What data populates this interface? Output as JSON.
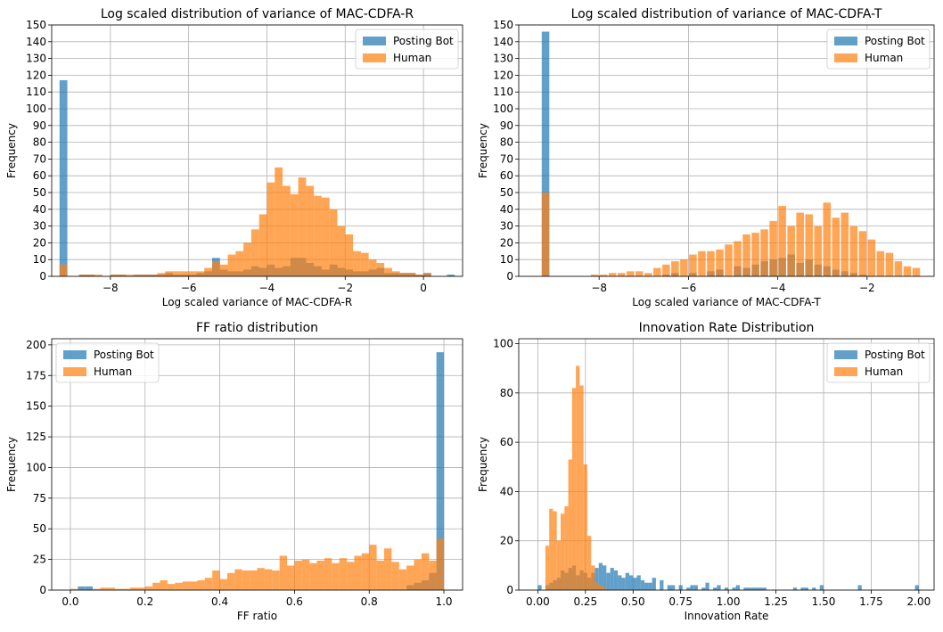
{
  "colors": {
    "bot": "#1f77b4",
    "human": "#ff7f0e",
    "grid": "#b0b0b0"
  },
  "chart_data": [
    {
      "type": "histogram",
      "title": "Log scaled distribution of variance of MAC-CDFA-R",
      "xlabel": "Log scaled variance of MAC-CDFA-R",
      "ylabel": "Frequency",
      "xlim": [
        -9.5,
        1.0
      ],
      "ylim": [
        0,
        150
      ],
      "xticks": [
        -8,
        -6,
        -4,
        -2,
        0
      ],
      "yticks": [
        0,
        10,
        20,
        30,
        40,
        50,
        60,
        70,
        80,
        90,
        100,
        110,
        120,
        130,
        140,
        150
      ],
      "grid": true,
      "legend": "top-right",
      "bin_width": 0.2,
      "series": [
        {
          "name": "Posting Bot",
          "color": "#1f77b4",
          "x": [
            -9.2,
            -8.7,
            -8.5,
            -7.9,
            -7.7,
            -7.3,
            -7.1,
            -6.9,
            -6.7,
            -6.5,
            -6.3,
            -6.1,
            -5.9,
            -5.7,
            -5.5,
            -5.3,
            -5.1,
            -4.9,
            -4.7,
            -4.5,
            -4.3,
            -4.1,
            -3.9,
            -3.7,
            -3.5,
            -3.3,
            -3.1,
            -2.9,
            -2.7,
            -2.5,
            -2.3,
            -2.1,
            -1.9,
            -1.7,
            -1.5,
            -1.3,
            -1.1,
            -0.9,
            -0.7,
            -0.5,
            -0.3,
            -0.1,
            0.1,
            0.7
          ],
          "values": [
            117,
            1,
            1,
            1,
            1,
            1,
            1,
            1,
            1,
            2,
            1,
            1,
            1,
            2,
            3,
            11,
            4,
            3,
            3,
            4,
            6,
            5,
            7,
            5,
            6,
            11,
            11,
            8,
            6,
            4,
            7,
            5,
            4,
            3,
            3,
            4,
            5,
            2,
            2,
            2,
            2,
            1,
            2,
            1
          ]
        },
        {
          "name": "Human",
          "color": "#ff7f0e",
          "x": [
            -9.2,
            -8.7,
            -8.5,
            -8.3,
            -7.9,
            -7.7,
            -7.5,
            -7.3,
            -7.1,
            -6.9,
            -6.7,
            -6.5,
            -6.3,
            -6.1,
            -5.9,
            -5.7,
            -5.5,
            -5.3,
            -5.1,
            -4.9,
            -4.7,
            -4.5,
            -4.3,
            -4.1,
            -3.9,
            -3.7,
            -3.5,
            -3.3,
            -3.1,
            -2.9,
            -2.7,
            -2.5,
            -2.3,
            -2.1,
            -1.9,
            -1.7,
            -1.5,
            -1.3,
            -1.1,
            -0.9,
            -0.7,
            -0.5,
            -0.3,
            -0.1,
            0.1
          ],
          "values": [
            7,
            1,
            1,
            1,
            1,
            1,
            1,
            1,
            1,
            1,
            2,
            3,
            3,
            3,
            3,
            3,
            5,
            9,
            7,
            13,
            15,
            20,
            28,
            37,
            56,
            65,
            54,
            49,
            59,
            54,
            48,
            47,
            40,
            30,
            25,
            15,
            14,
            10,
            8,
            5,
            3,
            2,
            2,
            1,
            2
          ]
        }
      ]
    },
    {
      "type": "histogram",
      "title": "Log scaled distribution of variance of MAC-CDFA-T",
      "xlabel": "Log scaled variance of MAC-CDFA-T",
      "ylabel": "Frequency",
      "xlim": [
        -9.8,
        -0.5
      ],
      "ylim": [
        0,
        150
      ],
      "xticks": [
        -8,
        -6,
        -4,
        -2
      ],
      "yticks": [
        0,
        10,
        20,
        30,
        40,
        50,
        60,
        70,
        80,
        90,
        100,
        110,
        120,
        130,
        140,
        150
      ],
      "grid": true,
      "legend": "top-right",
      "bin_width": 0.17,
      "series": [
        {
          "name": "Posting Bot",
          "color": "#1f77b4",
          "x": [
            -9.2,
            -6.5,
            -6.3,
            -5.9,
            -5.5,
            -5.3,
            -4.9,
            -4.7,
            -4.5,
            -4.3,
            -4.1,
            -3.9,
            -3.7,
            -3.5,
            -3.3,
            -3.1,
            -2.9,
            -2.7,
            -2.5,
            -2.3,
            -2.1
          ],
          "values": [
            146,
            1,
            2,
            2,
            3,
            4,
            6,
            5,
            7,
            9,
            10,
            11,
            13,
            8,
            10,
            7,
            6,
            4,
            3,
            2,
            1
          ]
        },
        {
          "name": "Human",
          "color": "#ff7f0e",
          "x": [
            -9.2,
            -8.1,
            -7.9,
            -7.7,
            -7.5,
            -7.3,
            -7.1,
            -6.9,
            -6.7,
            -6.5,
            -6.3,
            -6.1,
            -5.9,
            -5.7,
            -5.5,
            -5.3,
            -5.1,
            -4.9,
            -4.7,
            -4.5,
            -4.3,
            -4.1,
            -3.9,
            -3.7,
            -3.5,
            -3.3,
            -3.1,
            -2.9,
            -2.7,
            -2.5,
            -2.3,
            -2.1,
            -1.9,
            -1.7,
            -1.5,
            -1.3,
            -1.1,
            -0.9
          ],
          "values": [
            50,
            1,
            1,
            2,
            2,
            3,
            3,
            2,
            5,
            7,
            9,
            10,
            13,
            15,
            15,
            16,
            19,
            21,
            25,
            26,
            28,
            33,
            42,
            30,
            38,
            37,
            30,
            44,
            35,
            38,
            30,
            27,
            22,
            15,
            14,
            9,
            6,
            5
          ]
        }
      ]
    },
    {
      "type": "histogram",
      "title": "FF ratio distribution",
      "xlabel": "FF ratio",
      "ylabel": "Frequency",
      "xlim": [
        -0.05,
        1.05
      ],
      "ylim": [
        0,
        205
      ],
      "xticks": [
        0.0,
        0.2,
        0.4,
        0.6,
        0.8,
        1.0
      ],
      "yticks": [
        0,
        25,
        50,
        75,
        100,
        125,
        150,
        175,
        200
      ],
      "grid": true,
      "legend": "top-left",
      "bin_width": 0.02,
      "series": [
        {
          "name": "Posting Bot",
          "color": "#1f77b4",
          "x": [
            0.03,
            0.05,
            0.91,
            0.93,
            0.95,
            0.97,
            0.99
          ],
          "values": [
            3,
            3,
            4,
            6,
            8,
            14,
            194
          ]
        },
        {
          "name": "Human",
          "color": "#ff7f0e",
          "x": [
            0.01,
            0.07,
            0.09,
            0.11,
            0.13,
            0.15,
            0.17,
            0.19,
            0.21,
            0.23,
            0.25,
            0.27,
            0.29,
            0.31,
            0.33,
            0.35,
            0.37,
            0.39,
            0.41,
            0.43,
            0.45,
            0.47,
            0.49,
            0.51,
            0.53,
            0.55,
            0.57,
            0.59,
            0.61,
            0.63,
            0.65,
            0.67,
            0.69,
            0.71,
            0.73,
            0.75,
            0.77,
            0.79,
            0.81,
            0.83,
            0.85,
            0.87,
            0.89,
            0.91,
            0.93,
            0.95,
            0.97,
            0.99
          ],
          "values": [
            1,
            1,
            2,
            2,
            1,
            1,
            2,
            2,
            3,
            6,
            8,
            5,
            6,
            7,
            7,
            8,
            10,
            16,
            9,
            14,
            17,
            16,
            16,
            18,
            17,
            16,
            28,
            20,
            24,
            25,
            22,
            24,
            26,
            22,
            26,
            23,
            28,
            30,
            37,
            24,
            34,
            23,
            17,
            20,
            25,
            30,
            24,
            42
          ]
        }
      ]
    },
    {
      "type": "histogram",
      "title": "Innovation Rate Distribution",
      "xlabel": "Innovation Rate",
      "ylabel": "Frequency",
      "xlim": [
        -0.1,
        2.08
      ],
      "ylim": [
        0,
        102
      ],
      "xticks": [
        0.0,
        0.25,
        0.5,
        0.75,
        1.0,
        1.25,
        1.5,
        1.75,
        2.0
      ],
      "yticks": [
        0,
        20,
        40,
        60,
        80,
        100
      ],
      "grid": true,
      "legend": "top-right",
      "bin_width": 0.02,
      "series": [
        {
          "name": "Posting Bot",
          "color": "#1f77b4",
          "x": [
            0.01,
            0.05,
            0.07,
            0.09,
            0.11,
            0.13,
            0.15,
            0.17,
            0.19,
            0.21,
            0.23,
            0.25,
            0.27,
            0.29,
            0.31,
            0.33,
            0.35,
            0.37,
            0.39,
            0.41,
            0.43,
            0.45,
            0.47,
            0.49,
            0.51,
            0.53,
            0.55,
            0.57,
            0.59,
            0.61,
            0.65,
            0.69,
            0.71,
            0.75,
            0.79,
            0.81,
            0.83,
            0.87,
            0.89,
            0.93,
            0.95,
            0.99,
            1.03,
            1.05,
            1.09,
            1.11,
            1.13,
            1.15,
            1.17,
            1.19,
            1.35,
            1.39,
            1.41,
            1.45,
            1.49,
            1.69,
            1.99
          ],
          "values": [
            2,
            2,
            3,
            4,
            5,
            8,
            7,
            9,
            10,
            6,
            8,
            7,
            5,
            7,
            9,
            11,
            10,
            7,
            9,
            8,
            6,
            5,
            7,
            6,
            5,
            6,
            4,
            3,
            3,
            5,
            4,
            2,
            2,
            2,
            1,
            2,
            2,
            1,
            3,
            1,
            2,
            1,
            1,
            2,
            1,
            1,
            1,
            1,
            1,
            1,
            1,
            1,
            1,
            1,
            2,
            2,
            2
          ]
        },
        {
          "name": "Human",
          "color": "#ff7f0e",
          "x": [
            0.05,
            0.07,
            0.09,
            0.11,
            0.13,
            0.15,
            0.17,
            0.19,
            0.21,
            0.23,
            0.25,
            0.27,
            0.29,
            0.31,
            0.33,
            0.35
          ],
          "values": [
            18,
            33,
            32,
            20,
            31,
            34,
            53,
            82,
            91,
            83,
            51,
            22,
            10,
            3,
            2,
            1
          ]
        }
      ]
    }
  ]
}
